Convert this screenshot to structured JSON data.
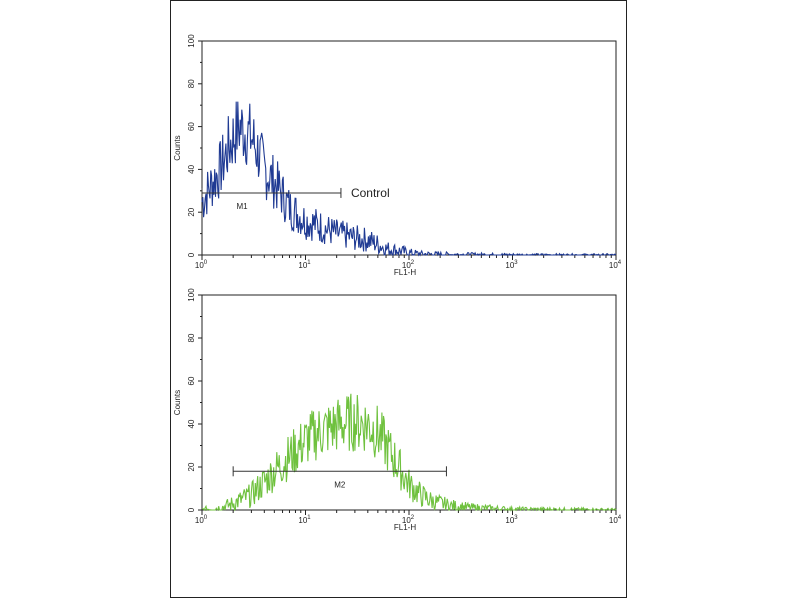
{
  "chart_data": [
    {
      "type": "line",
      "color": "#1f3a93",
      "xlabel": "FL1-H",
      "ylabel": "Counts",
      "x_scale": "log",
      "xlim": [
        1,
        10000
      ],
      "ylim": [
        0,
        100
      ],
      "y_ticks": [
        "0",
        "20",
        "40",
        "60",
        "80",
        "100"
      ],
      "x_ticks": [
        {
          "base": "10",
          "exp": "0"
        },
        {
          "base": "10",
          "exp": "1"
        },
        {
          "base": "10",
          "exp": "2"
        },
        {
          "base": "10",
          "exp": "3"
        },
        {
          "base": "10",
          "exp": "4"
        }
      ],
      "gate": {
        "label": "M1",
        "x_start": 1.0,
        "x_end": 22,
        "y": 29
      },
      "annotation": "Control",
      "series": [
        {
          "x": [
            1.0,
            1.2,
            1.5,
            1.8,
            2.0,
            2.3,
            2.6,
            3.0,
            3.5,
            4.0,
            5.0,
            6.0,
            7.0,
            8.5,
            10,
            13,
            16,
            20,
            25,
            30,
            40,
            50,
            60,
            80,
            100,
            130,
            200,
            400,
            1000,
            10000
          ],
          "y": [
            25,
            32,
            40,
            50,
            55,
            60,
            58,
            55,
            48,
            40,
            34,
            28,
            22,
            19,
            16,
            14,
            12,
            10,
            9,
            8,
            7,
            5,
            3,
            2,
            1,
            0.5,
            0.3,
            0.2,
            0.1,
            0
          ]
        }
      ]
    },
    {
      "type": "line",
      "color": "#6fc13e",
      "xlabel": "FL1-H",
      "ylabel": "Counts",
      "x_scale": "log",
      "xlim": [
        1,
        10000
      ],
      "ylim": [
        0,
        100
      ],
      "y_ticks": [
        "0",
        "20",
        "40",
        "60",
        "80",
        "100"
      ],
      "x_ticks": [
        {
          "base": "10",
          "exp": "0"
        },
        {
          "base": "10",
          "exp": "1"
        },
        {
          "base": "10",
          "exp": "2"
        },
        {
          "base": "10",
          "exp": "3"
        },
        {
          "base": "10",
          "exp": "4"
        }
      ],
      "gate": {
        "label": "M2",
        "x_start": 2.0,
        "x_end": 230,
        "y": 18
      },
      "series": [
        {
          "x": [
            1.0,
            1.5,
            2.0,
            3.0,
            4.0,
            5.0,
            7.0,
            10,
            13,
            17,
            22,
            30,
            40,
            50,
            60,
            80,
            100,
            130,
            170,
            250,
            400,
            1000,
            10000
          ],
          "y": [
            0.2,
            1,
            3,
            7,
            13,
            18,
            25,
            32,
            36,
            38,
            40,
            41,
            40,
            36,
            30,
            20,
            12,
            7,
            4,
            2,
            1,
            0.3,
            0.1
          ]
        }
      ]
    }
  ]
}
